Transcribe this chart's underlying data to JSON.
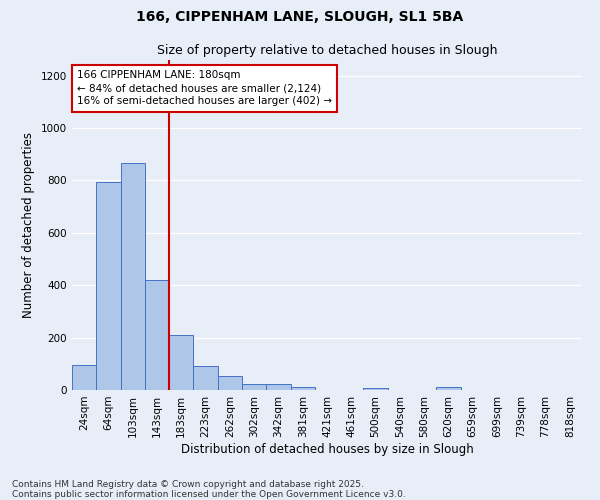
{
  "title1": "166, CIPPENHAM LANE, SLOUGH, SL1 5BA",
  "title2": "Size of property relative to detached houses in Slough",
  "xlabel": "Distribution of detached houses by size in Slough",
  "ylabel": "Number of detached properties",
  "categories": [
    "24sqm",
    "64sqm",
    "103sqm",
    "143sqm",
    "183sqm",
    "223sqm",
    "262sqm",
    "302sqm",
    "342sqm",
    "381sqm",
    "421sqm",
    "461sqm",
    "500sqm",
    "540sqm",
    "580sqm",
    "620sqm",
    "659sqm",
    "699sqm",
    "739sqm",
    "778sqm",
    "818sqm"
  ],
  "values": [
    95,
    793,
    868,
    420,
    210,
    90,
    52,
    22,
    22,
    12,
    0,
    0,
    6,
    0,
    0,
    10,
    0,
    0,
    0,
    0,
    0
  ],
  "bar_color": "#aec6e8",
  "bar_edge_color": "#4472c4",
  "vline_x_idx": 4,
  "vline_color": "#cc0000",
  "annotation_line1": "166 CIPPENHAM LANE: 180sqm",
  "annotation_line2": "← 84% of detached houses are smaller (2,124)",
  "annotation_line3": "16% of semi-detached houses are larger (402) →",
  "annotation_box_color": "#ffffff",
  "annotation_box_edge": "#cc0000",
  "bg_color": "#e8eef8",
  "grid_color": "#ffffff",
  "ylim": [
    0,
    1260
  ],
  "yticks": [
    0,
    200,
    400,
    600,
    800,
    1000,
    1200
  ],
  "footnote1": "Contains HM Land Registry data © Crown copyright and database right 2025.",
  "footnote2": "Contains public sector information licensed under the Open Government Licence v3.0.",
  "title_fontsize": 10,
  "subtitle_fontsize": 9,
  "axis_label_fontsize": 8.5,
  "tick_fontsize": 7.5,
  "annotation_fontsize": 7.5,
  "footnote_fontsize": 6.5
}
